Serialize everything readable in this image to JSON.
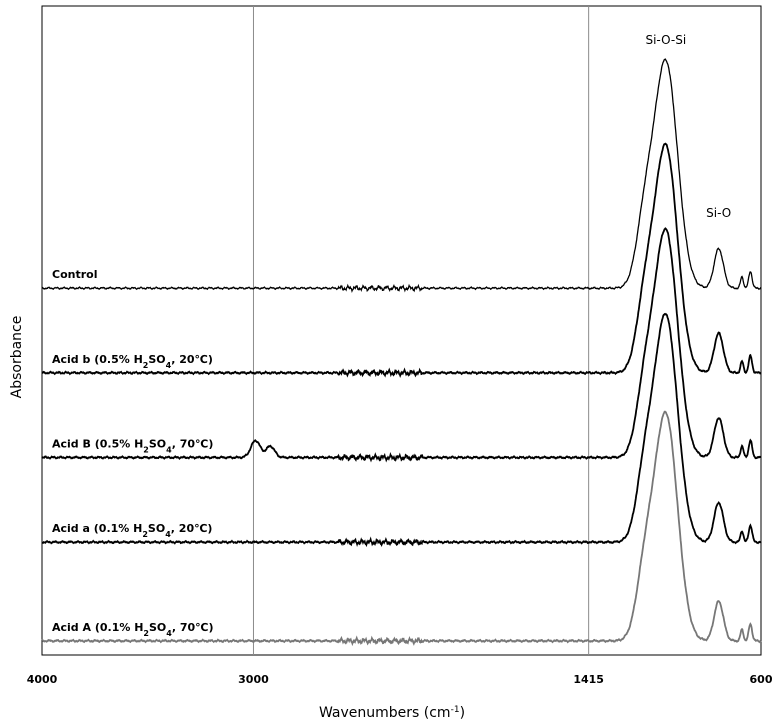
{
  "chart_data": {
    "type": "line",
    "xlabel": "Wavenumbers (cm",
    "xlabel_sup": "-1",
    "xlabel_close": ")",
    "ylabel": "Absorbance",
    "xlim": [
      4000,
      600
    ],
    "x_reversed": true,
    "x_ticks": [
      {
        "value": 4000,
        "label": "4000"
      },
      {
        "value": 3000,
        "label": "3000"
      },
      {
        "value": 1415,
        "label": "1415"
      },
      {
        "value": 600,
        "label": "600"
      }
    ],
    "reference_lines": [
      3000,
      1415
    ],
    "annotations": [
      {
        "text": "Si-O-Si",
        "x": 1050
      },
      {
        "text": "Si-O",
        "x": 800
      }
    ],
    "series": [
      {
        "name": "Control",
        "label_pre": "Control",
        "label_sub": "",
        "label_post": "",
        "color": "#000000",
        "baseline": 1.3,
        "scale": 1.0
      },
      {
        "name": "Acid b (0.5% H2SO4, 20°C)",
        "label_pre": "Acid b  (0.5% H",
        "label_sub": "2",
        "label_mid": "SO",
        "label_sub2": "4",
        "label_post": ",  20℃)",
        "color": "#000000",
        "baseline": 1.0,
        "scale": 1.0
      },
      {
        "name": "Acid B (0.5% H2SO4, 70°C)",
        "label_pre": "Acid B  (0.5% H",
        "label_sub": "2",
        "label_mid": "SO",
        "label_sub2": "4",
        "label_post": ",  70℃)",
        "color": "#000000",
        "baseline": 0.7,
        "scale": 1.0
      },
      {
        "name": "Acid a (0.1% H2SO4, 20°C)",
        "label_pre": "Acid a  (0.1% H",
        "label_sub": "2",
        "label_mid": "SO",
        "label_sub2": "4",
        "label_post": ",  20℃)",
        "color": "#000000",
        "baseline": 0.4,
        "scale": 1.0
      },
      {
        "name": "Acid A (0.1% H2SO4, 70°C)",
        "label_pre": "Acid A  (0.1% H",
        "label_sub": "2",
        "label_mid": "SO",
        "label_sub2": "4",
        "label_post": ",  70℃)",
        "color": "#777777",
        "baseline": 0.05,
        "scale": 1.0
      }
    ],
    "peaks": [
      {
        "center": 1050,
        "width": 55,
        "height": 0.8
      },
      {
        "center": 1150,
        "width": 40,
        "height": 0.22
      },
      {
        "center": 800,
        "width": 22,
        "height": 0.14
      },
      {
        "center": 690,
        "width": 7,
        "height": 0.04
      },
      {
        "center": 650,
        "width": 8,
        "height": 0.06
      }
    ],
    "extra_peaks": {
      "Acid B (0.5% H2SO4, 70°C)": [
        {
          "center": 2990,
          "width": 22,
          "height": 0.06
        },
        {
          "center": 2920,
          "width": 20,
          "height": 0.04
        }
      ]
    },
    "ylim": [
      0,
      2.3
    ],
    "grid": false
  }
}
